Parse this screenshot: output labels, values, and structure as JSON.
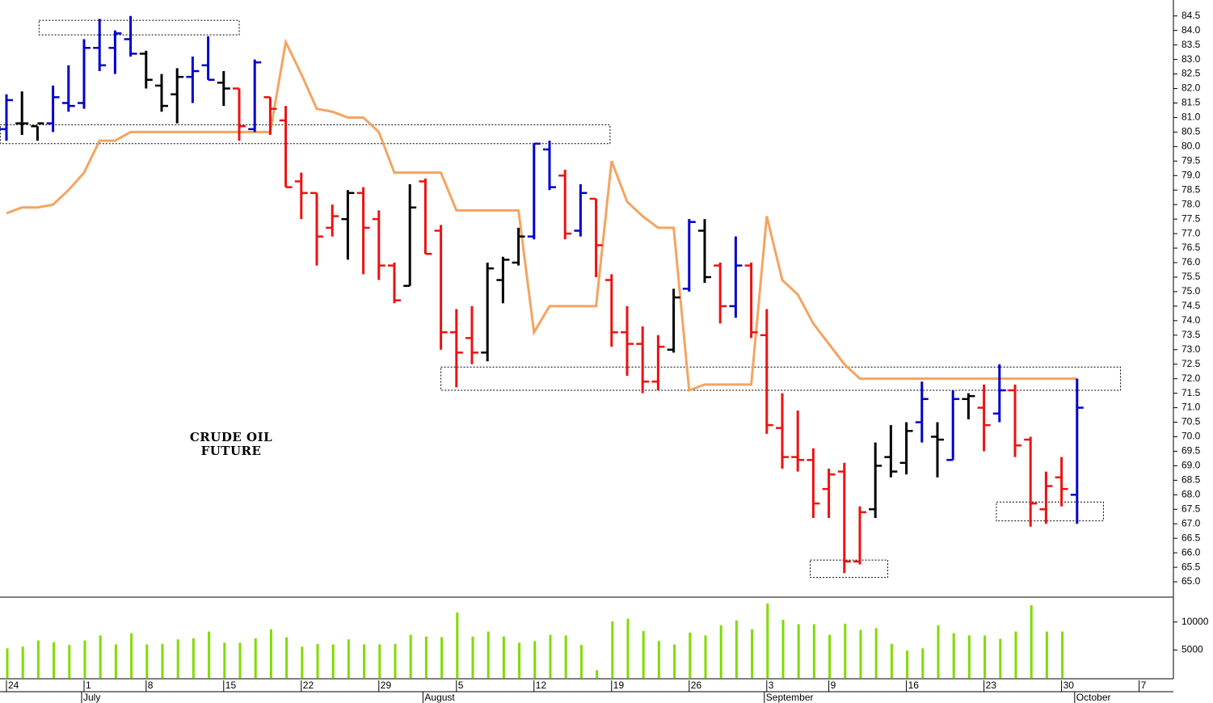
{
  "chart_data": {
    "type": "ohlc",
    "annotation": [
      "CRUDE OIL",
      "FUTURE"
    ],
    "categories": [
      "24",
      null,
      null,
      null,
      null,
      "1",
      null,
      null,
      null,
      "8",
      null,
      null,
      null,
      null,
      "15",
      null,
      null,
      null,
      null,
      "22",
      null,
      null,
      null,
      null,
      "29",
      null,
      null,
      null,
      null,
      "5",
      null,
      null,
      null,
      null,
      "12",
      null,
      null,
      null,
      null,
      "19",
      null,
      null,
      null,
      null,
      "26",
      null,
      null,
      null,
      null,
      "3",
      null,
      null,
      null,
      "9",
      null,
      null,
      null,
      null,
      "16",
      null,
      null,
      null,
      null,
      "23",
      null,
      null,
      null,
      null,
      "30",
      null,
      null,
      null,
      null,
      "7"
    ],
    "x_months": [
      null,
      null,
      null,
      null,
      null,
      "July",
      null,
      null,
      null,
      null,
      null,
      null,
      null,
      null,
      null,
      null,
      null,
      null,
      null,
      null,
      null,
      null,
      null,
      null,
      null,
      null,
      null,
      "August",
      null,
      null,
      null,
      null,
      null,
      null,
      null,
      null,
      null,
      null,
      null,
      null,
      null,
      null,
      null,
      null,
      null,
      null,
      null,
      null,
      null,
      "September",
      null,
      null,
      null,
      null,
      null,
      null,
      null,
      null,
      null,
      null,
      null,
      null,
      null,
      null,
      null,
      null,
      null,
      null,
      null,
      "October",
      null,
      null,
      null,
      null
    ],
    "open": [
      80.6,
      80.8,
      80.7,
      80.8,
      81.5,
      81.5,
      83.4,
      83.4,
      83.7,
      83.2,
      82.1,
      81.8,
      82.4,
      82.8,
      82.2,
      82.0,
      80.6,
      81.7,
      80.9,
      78.8,
      78.4,
      77.2,
      77.5,
      78.4,
      77.5,
      75.9,
      75.2,
      78.8,
      77.1,
      73.6,
      73.4,
      72.9,
      75.4,
      76.0,
      76.9,
      79.9,
      79.0,
      77.1,
      78.2,
      75.4,
      73.6,
      73.2,
      71.9,
      73.0,
      75.1,
      77.1,
      75.9,
      74.5,
      75.9,
      73.5,
      70.3,
      69.3,
      69.2,
      68.2,
      68.8,
      65.7,
      67.5,
      69.3,
      69.1,
      70.5,
      70.0,
      69.2,
      71.3,
      71.0,
      70.8,
      71.6,
      69.9,
      67.5,
      68.6,
      68.0,
      null,
      null,
      null,
      null
    ],
    "high": [
      81.8,
      81.9,
      80.7,
      82.1,
      82.8,
      83.7,
      84.4,
      84.0,
      84.5,
      83.3,
      82.5,
      82.7,
      83.1,
      83.8,
      82.6,
      82.0,
      83.0,
      81.7,
      81.4,
      79.1,
      78.4,
      78.0,
      78.5,
      78.6,
      77.8,
      76.0,
      78.7,
      78.9,
      77.3,
      74.4,
      74.5,
      76.0,
      76.2,
      77.2,
      80.1,
      80.2,
      79.2,
      78.7,
      78.2,
      75.6,
      74.5,
      73.8,
      73.5,
      75.1,
      77.5,
      77.5,
      76.0,
      76.9,
      76.0,
      74.4,
      71.5,
      70.9,
      69.6,
      68.9,
      69.1,
      67.6,
      69.8,
      70.4,
      70.5,
      71.9,
      70.5,
      71.6,
      71.5,
      71.8,
      72.5,
      71.8,
      70.0,
      68.8,
      69.3,
      72.0,
      null,
      null,
      null,
      null
    ],
    "low": [
      80.2,
      80.4,
      80.2,
      80.5,
      81.2,
      81.3,
      82.6,
      82.5,
      83.1,
      82.0,
      81.2,
      80.8,
      81.5,
      82.3,
      81.4,
      80.2,
      80.5,
      80.4,
      78.6,
      77.5,
      75.9,
      76.9,
      76.1,
      75.6,
      75.4,
      74.6,
      75.2,
      76.3,
      73.0,
      71.7,
      72.5,
      72.6,
      74.6,
      75.9,
      76.8,
      78.5,
      76.8,
      76.9,
      75.5,
      73.1,
      72.1,
      71.5,
      71.6,
      72.9,
      75.0,
      75.3,
      73.9,
      74.1,
      73.4,
      70.1,
      68.9,
      68.8,
      67.2,
      67.2,
      65.3,
      65.6,
      67.2,
      68.6,
      68.7,
      69.8,
      68.6,
      69.2,
      70.6,
      69.5,
      70.5,
      69.3,
      66.9,
      67.0,
      67.6,
      67.0,
      null,
      null,
      null,
      null
    ],
    "close": [
      81.6,
      80.8,
      80.8,
      81.7,
      81.4,
      83.4,
      82.8,
      83.9,
      83.2,
      82.3,
      81.4,
      82.4,
      82.6,
      82.3,
      82.0,
      80.7,
      82.9,
      81.3,
      78.6,
      78.4,
      76.9,
      77.6,
      78.4,
      77.2,
      75.9,
      74.7,
      77.9,
      76.3,
      73.6,
      72.9,
      72.9,
      75.8,
      76.1,
      76.9,
      80.1,
      78.6,
      77.0,
      78.4,
      76.6,
      73.6,
      73.2,
      71.9,
      73.1,
      74.8,
      77.4,
      75.5,
      74.5,
      75.9,
      73.6,
      70.4,
      69.3,
      69.2,
      67.7,
      68.7,
      65.7,
      67.4,
      69.0,
      68.8,
      70.2,
      71.3,
      69.9,
      71.3,
      71.4,
      70.4,
      71.6,
      69.7,
      67.7,
      68.3,
      68.2,
      71.0,
      null,
      null,
      null,
      null
    ],
    "colors": [
      "#0000cc",
      "#000000",
      "#000000",
      "#0000cc",
      "#0000cc",
      "#0000cc",
      "#0000cc",
      "#0000cc",
      "#0000cc",
      "#000000",
      "#000000",
      "#000000",
      "#0000cc",
      "#0000cc",
      "#000000",
      "#ee1111",
      "#0000cc",
      "#ee1111",
      "#ee1111",
      "#ee1111",
      "#ee1111",
      "#ee1111",
      "#000000",
      "#ee1111",
      "#ee1111",
      "#ee1111",
      "#000000",
      "#ee1111",
      "#ee1111",
      "#ee1111",
      "#ee1111",
      "#000000",
      "#000000",
      "#000000",
      "#0000cc",
      "#0000cc",
      "#ee1111",
      "#0000cc",
      "#ee1111",
      "#ee1111",
      "#ee1111",
      "#ee1111",
      "#ee1111",
      "#000000",
      "#0000cc",
      "#000000",
      "#ee1111",
      "#0000cc",
      "#ee1111",
      "#ee1111",
      "#ee1111",
      "#ee1111",
      "#ee1111",
      "#ee1111",
      "#ee1111",
      "#ee1111",
      "#000000",
      "#000000",
      "#000000",
      "#0000cc",
      "#000000",
      "#0000cc",
      "#000000",
      "#ee1111",
      "#0000cc",
      "#ee1111",
      "#ee1111",
      "#ee1111",
      "#ee1111",
      "#0000cc",
      null,
      null,
      null,
      null
    ],
    "ylim": [
      64.5,
      85.05
    ],
    "yticks": [
      {
        "value": 65,
        "label": "65.0"
      },
      65.5,
      {
        "value": 66,
        "label": "66.0"
      },
      66.5,
      {
        "value": 67,
        "label": "67.0"
      },
      67.5,
      {
        "value": 68,
        "label": "68.0"
      },
      68.5,
      {
        "value": 69,
        "label": "69.0"
      },
      69.5,
      {
        "value": 70,
        "label": "70.0"
      },
      70.5,
      {
        "value": 71,
        "label": "71.0"
      },
      71.5,
      {
        "value": 72,
        "label": "72.0"
      },
      72.5,
      {
        "value": 73,
        "label": "73.0"
      },
      73.5,
      {
        "value": 74,
        "label": "74.0"
      },
      74.5,
      {
        "value": 75,
        "label": "75.0"
      },
      75.5,
      {
        "value": 76,
        "label": "76.0"
      },
      76.5,
      {
        "value": 77,
        "label": "77.0"
      },
      77.5,
      {
        "value": 78,
        "label": "78.0"
      },
      78.5,
      {
        "value": 79,
        "label": "79.0"
      },
      79.5,
      {
        "value": 80,
        "label": "80.0"
      },
      80.5,
      {
        "value": 81,
        "label": "81.0"
      },
      81.5,
      {
        "value": 82,
        "label": "82.0"
      },
      82.5,
      {
        "value": 83,
        "label": "83.0"
      },
      83.5,
      {
        "value": 84,
        "label": "84.0"
      },
      84.5
    ],
    "overlay": {
      "type": "line",
      "color": "#f4a460",
      "values": [
        77.7,
        77.9,
        77.9,
        78.0,
        78.5,
        79.1,
        80.2,
        80.2,
        80.5,
        80.5,
        80.5,
        80.5,
        80.5,
        80.5,
        80.5,
        80.5,
        80.5,
        80.5,
        83.6,
        82.5,
        81.3,
        81.2,
        81.0,
        81.0,
        80.5,
        79.1,
        79.1,
        79.1,
        79.1,
        77.8,
        77.8,
        77.8,
        77.8,
        77.8,
        73.6,
        74.5,
        74.5,
        74.5,
        74.5,
        79.5,
        78.1,
        77.6,
        77.2,
        77.2,
        71.6,
        71.8,
        71.8,
        71.8,
        71.8,
        77.6,
        75.4,
        74.9,
        73.9,
        73.2,
        72.5,
        72.0,
        72.0,
        72.0,
        72.0,
        72.0,
        72.0,
        72.0,
        72.0,
        72.0,
        72.0,
        72.0,
        72.0,
        72.0,
        72.0,
        72.0,
        null,
        null,
        null,
        null
      ]
    },
    "zones": [
      {
        "ylim": [
          83.85,
          84.35
        ],
        "xlim": [
          2.1,
          15.0
        ]
      },
      {
        "ylim": [
          80.1,
          80.75
        ],
        "xlim": [
          -0.4,
          38.9
        ]
      },
      {
        "ylim": [
          71.6,
          72.4
        ],
        "xlim": [
          28.0,
          71.8
        ]
      },
      {
        "ylim": [
          65.15,
          65.75
        ],
        "xlim": [
          51.8,
          56.8
        ]
      },
      {
        "ylim": [
          67.1,
          67.75
        ],
        "xlim": [
          63.8,
          70.7
        ]
      }
    ],
    "volume": {
      "type": "bar",
      "color": "#7fdc00",
      "values": [
        5300,
        5600,
        6700,
        6400,
        5900,
        6700,
        7600,
        6000,
        8000,
        6000,
        6100,
        6900,
        7100,
        8300,
        6300,
        6300,
        7100,
        8700,
        7300,
        5600,
        6100,
        6000,
        6900,
        6000,
        6000,
        6100,
        7700,
        7400,
        7300,
        11700,
        7400,
        8300,
        7400,
        6300,
        6600,
        7700,
        7600,
        5900,
        1400,
        10100,
        10600,
        8400,
        6600,
        6000,
        8100,
        7600,
        9400,
        10300,
        8700,
        13300,
        10400,
        9600,
        9600,
        7700,
        9700,
        8600,
        8900,
        6100,
        4900,
        5300,
        9400,
        8000,
        7600,
        7600,
        7000,
        8300,
        13000,
        8300,
        8300,
        null,
        null,
        null,
        null,
        null
      ],
      "ylim": [
        0,
        14300
      ],
      "yticks": [
        5000,
        10000
      ]
    }
  }
}
